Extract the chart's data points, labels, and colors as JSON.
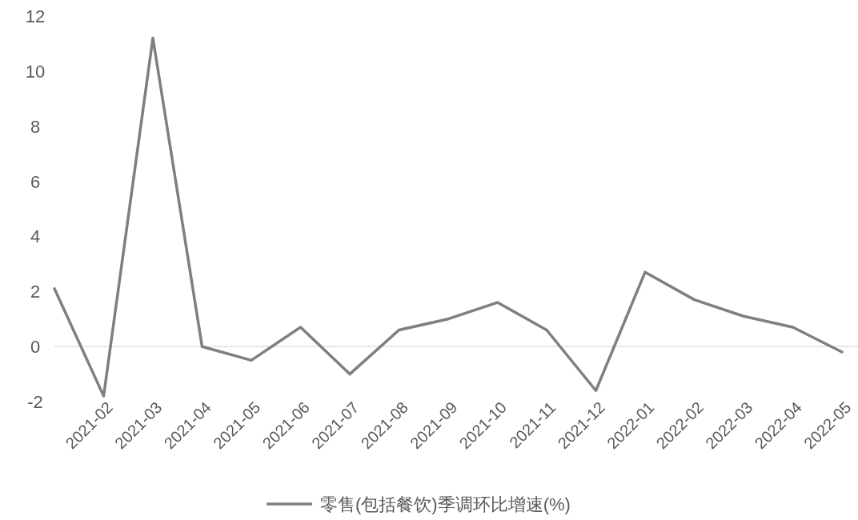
{
  "chart_data": {
    "type": "line",
    "categories": [
      null,
      "2021-02",
      "2021-03",
      "2021-04",
      "2021-05",
      "2021-06",
      "2021-07",
      "2021-08",
      "2021-09",
      "2021-10",
      "2021-11",
      "2021-12",
      "2022-01",
      "2022-02",
      "2022-03",
      "2022-04",
      "2022-05"
    ],
    "series": [
      {
        "name": "零售(包括餐饮)季调环比增速(%)",
        "color": "#7f7f7f",
        "values": [
          2.1,
          -1.8,
          11.2,
          0.0,
          -0.5,
          0.7,
          -1.0,
          0.6,
          1.0,
          1.6,
          0.6,
          -1.6,
          2.7,
          1.7,
          1.1,
          0.7,
          -0.2
        ]
      }
    ],
    "ylim": [
      -2,
      12
    ],
    "yticks": [
      -2,
      0,
      2,
      4,
      6,
      8,
      10,
      12
    ],
    "legend": "bottom",
    "marker": "none",
    "line_style": "solid",
    "grid": false,
    "ref_lines": [
      {
        "axis": "y",
        "value": 0,
        "color": "#d9d9d9"
      }
    ]
  }
}
